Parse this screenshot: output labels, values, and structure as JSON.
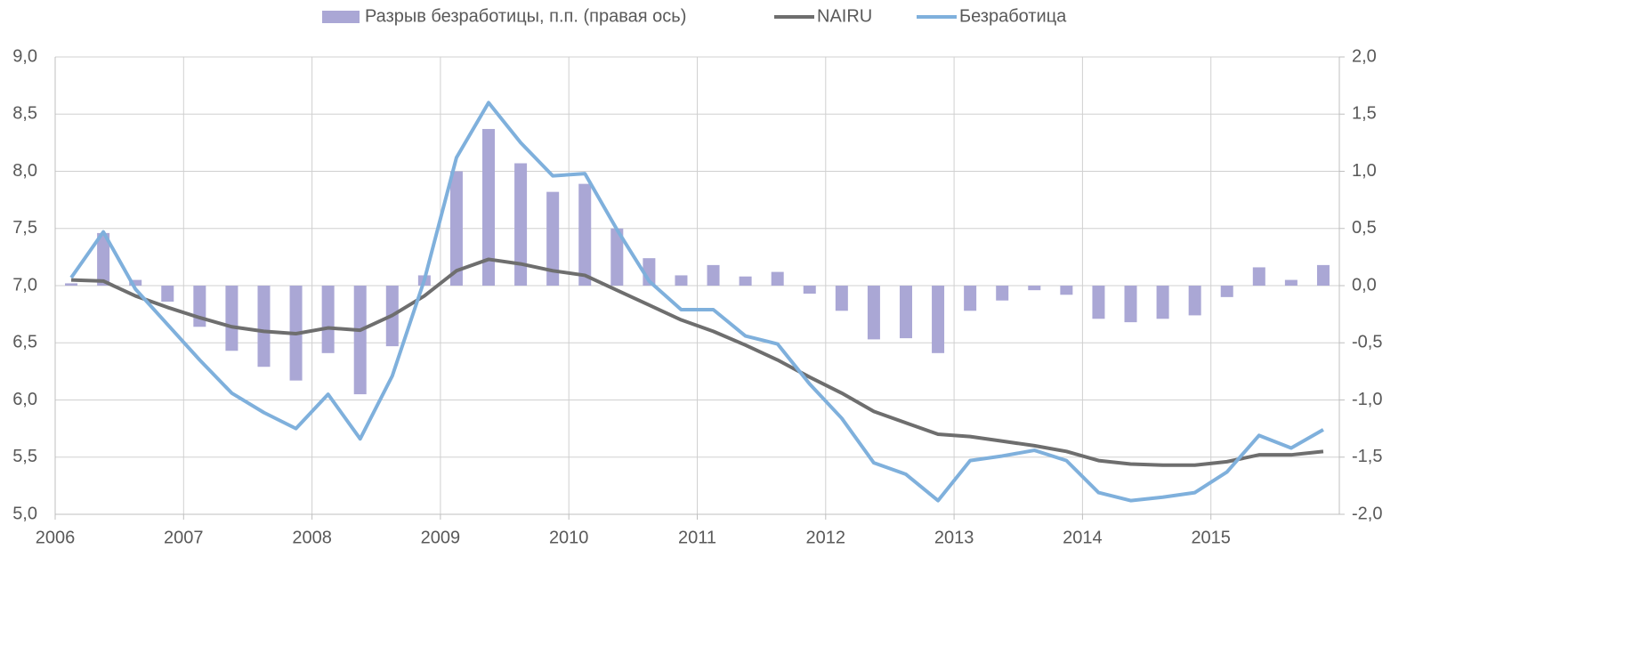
{
  "chart_data": {
    "type": "combo",
    "x": [
      2006.125,
      2006.375,
      2006.625,
      2006.875,
      2007.125,
      2007.375,
      2007.625,
      2007.875,
      2008.125,
      2008.375,
      2008.625,
      2008.875,
      2009.125,
      2009.375,
      2009.625,
      2009.875,
      2010.125,
      2010.375,
      2010.625,
      2010.875,
      2011.125,
      2011.375,
      2011.625,
      2011.875,
      2012.125,
      2012.375,
      2012.625,
      2012.875,
      2013.125,
      2013.375,
      2013.625,
      2013.875,
      2014.125,
      2014.375,
      2014.625,
      2014.875,
      2015.125,
      2015.375,
      2015.625,
      2015.875
    ],
    "series": [
      {
        "name": "Разрыв безработицы, п.п. (правая ось)",
        "type": "bar",
        "axis": "y2",
        "color": "#aaa7d5",
        "values": [
          0.02,
          0.46,
          0.05,
          -0.14,
          -0.36,
          -0.57,
          -0.71,
          -0.83,
          -0.59,
          -0.95,
          -0.53,
          0.09,
          1.0,
          1.37,
          1.07,
          0.82,
          0.89,
          0.5,
          0.24,
          0.09,
          0.18,
          0.08,
          0.12,
          -0.07,
          -0.22,
          -0.47,
          -0.46,
          -0.59,
          -0.22,
          -0.13,
          -0.04,
          -0.08,
          -0.29,
          -0.32,
          -0.29,
          -0.26,
          -0.1,
          0.16,
          0.05,
          0.18
        ]
      },
      {
        "name": "NAIRU",
        "type": "line",
        "color": "#6e6e6e",
        "values": [
          7.05,
          7.04,
          6.91,
          6.81,
          6.72,
          6.64,
          6.6,
          6.58,
          6.63,
          6.61,
          6.74,
          6.91,
          7.13,
          7.23,
          7.19,
          7.13,
          7.09,
          6.96,
          6.83,
          6.7,
          6.6,
          6.48,
          6.35,
          6.2,
          6.06,
          5.9,
          5.8,
          5.7,
          5.68,
          5.64,
          5.6,
          5.55,
          5.47,
          5.44,
          5.43,
          5.43,
          5.46,
          5.52,
          5.52,
          5.55
        ]
      },
      {
        "name": "Безработица",
        "type": "line",
        "color": "#7fb0dc",
        "values": [
          7.07,
          7.47,
          6.97,
          6.66,
          6.35,
          6.06,
          5.89,
          5.75,
          6.05,
          5.66,
          6.21,
          7.05,
          8.12,
          8.6,
          8.25,
          7.96,
          7.98,
          7.49,
          7.04,
          6.79,
          6.79,
          6.56,
          6.49,
          6.14,
          5.84,
          5.45,
          5.35,
          5.12,
          5.47,
          5.51,
          5.56,
          5.47,
          5.19,
          5.12,
          5.15,
          5.19,
          5.37,
          5.69,
          5.58,
          5.74
        ]
      }
    ],
    "xlim": [
      2006,
      2016
    ],
    "xticks": [
      2006,
      2007,
      2008,
      2009,
      2010,
      2011,
      2012,
      2013,
      2014,
      2015
    ],
    "ylim": [
      5,
      9
    ],
    "yticks": [
      {
        "value": 5,
        "label": "5,0"
      },
      {
        "value": 5.5,
        "label": "5,5"
      },
      {
        "value": 6,
        "label": "6,0"
      },
      {
        "value": 6.5,
        "label": "6,5"
      },
      {
        "value": 7,
        "label": "7,0"
      },
      {
        "value": 7.5,
        "label": "7,5"
      },
      {
        "value": 8,
        "label": "8,0"
      },
      {
        "value": 8.5,
        "label": "8,5"
      },
      {
        "value": 9,
        "label": "9,0"
      }
    ],
    "y2lim": [
      -2,
      2
    ],
    "y2ticks": [
      {
        "value": -2,
        "label": "-2,0"
      },
      {
        "value": -1.5,
        "label": "-1,5"
      },
      {
        "value": -1,
        "label": "-1,0"
      },
      {
        "value": -0.5,
        "label": "-0,5"
      },
      {
        "value": 0,
        "label": "0,0"
      },
      {
        "value": 0.5,
        "label": "0,5"
      },
      {
        "value": 1,
        "label": "1,0"
      },
      {
        "value": 1.5,
        "label": "1,5"
      },
      {
        "value": 2,
        "label": "2,0"
      }
    ],
    "grid": true,
    "legend": "top"
  }
}
